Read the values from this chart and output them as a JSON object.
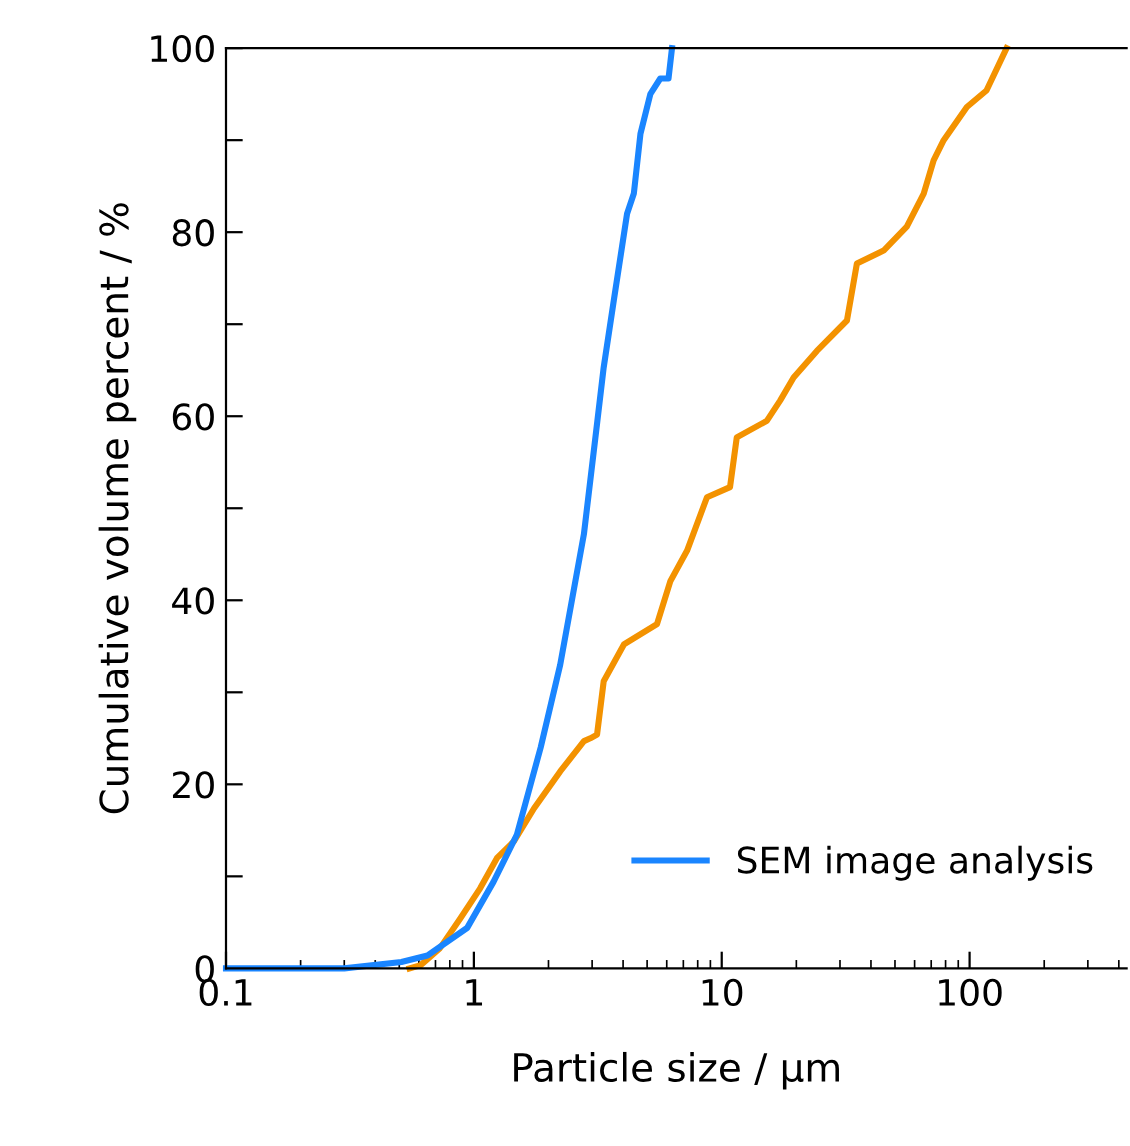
{
  "chart_data": {
    "type": "line",
    "xlabel": "Particle size / µm",
    "ylabel": "Cumulative volume percent / %",
    "log": "x",
    "xlim": [
      0.1,
      430
    ],
    "xticks": [
      0.1,
      1,
      10,
      100
    ],
    "ylim": [
      0,
      100
    ],
    "yticks": [
      0,
      {
        "value": 10,
        "label": null
      },
      20,
      {
        "value": 30,
        "label": null
      },
      40,
      {
        "value": 50,
        "label": null
      },
      60,
      {
        "value": 70,
        "label": null
      },
      80,
      {
        "value": 90,
        "label": null
      },
      100
    ],
    "grid": false,
    "legend": "bottom right",
    "marker": "none",
    "line_style": "solid",
    "series": [
      {
        "color": "#f39200",
        "x": [
          0.55,
          0.61,
          0.73,
          0.88,
          1.06,
          1.24,
          1.45,
          1.75,
          2.23,
          2.78,
          2.95,
          3.14,
          3.34,
          4.03,
          5.48,
          6.21,
          7.25,
          8.72,
          10.8,
          11.5,
          15.2,
          17.2,
          19.5,
          24.2,
          32,
          35.1,
          45,
          55.8,
          65.3,
          71.6,
          78.6,
          97.5,
          117,
          141
        ],
        "values": [
          0,
          0.35,
          2.2,
          5.4,
          8.7,
          12,
          13.8,
          17.4,
          21.4,
          24.7,
          25,
          25.4,
          31.2,
          35.2,
          37.4,
          42.1,
          45.4,
          51.2,
          52.3,
          57.7,
          59.5,
          61.7,
          64.2,
          67.1,
          70.4,
          76.6,
          78,
          80.6,
          84.2,
          87.8,
          90,
          93.6,
          95.4,
          100
        ]
      },
      {
        "name": "SEM image analysis",
        "color": "#1a85ff",
        "x": [
          0.1,
          0.3,
          0.51,
          0.65,
          0.94,
          1.2,
          1.49,
          1.86,
          2.23,
          2.78,
          3.15,
          3.34,
          3.67,
          4.15,
          4.42,
          4.7,
          5.15,
          5.65,
          6.1,
          6.3
        ],
        "values": [
          0,
          0,
          0.7,
          1.4,
          4.4,
          9.4,
          14.5,
          24,
          33,
          47.2,
          59.5,
          65.3,
          72.6,
          82,
          84.2,
          90.7,
          95,
          96.7,
          96.7,
          100
        ]
      }
    ]
  }
}
